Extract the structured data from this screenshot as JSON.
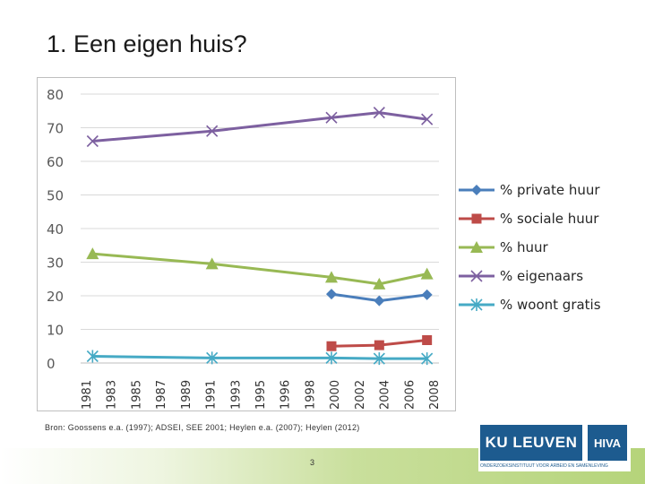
{
  "slide": {
    "title": "1. Een eigen huis?",
    "source": "Bron: Goossens e.a. (1997); ADSEI, SEE 2001; Heylen e.a. (2007); Heylen (2012)",
    "page_number": "3"
  },
  "logo": {
    "ku_text": "KU LEUVEN",
    "hva_text": "HIVA",
    "tagline": "ONDERZOEKSINSTITUUT VOOR ARBEID EN SAMENLEVING"
  },
  "chart_data": {
    "type": "line",
    "title": "",
    "xlabel": "",
    "ylabel": "",
    "ylim": [
      0,
      80
    ],
    "yticks": [
      0,
      10,
      20,
      30,
      40,
      50,
      60,
      70,
      80
    ],
    "categories": [
      "1981",
      "1983",
      "1985",
      "1987",
      "1989",
      "1991",
      "1993",
      "1995",
      "1996",
      "1998",
      "2000",
      "2002",
      "2004",
      "2006",
      "2008"
    ],
    "grid": "horizontal",
    "legend_position": "right",
    "series": [
      {
        "name": "% private huur",
        "color": "#4a7ebb",
        "marker": "diamond",
        "points": [
          [
            2001,
            20.5
          ],
          [
            2005,
            18.5
          ],
          [
            2009,
            20.3
          ]
        ]
      },
      {
        "name": "% sociale huur",
        "color": "#be4b48",
        "marker": "square",
        "points": [
          [
            2001,
            5.0
          ],
          [
            2005,
            5.3
          ],
          [
            2009,
            6.8
          ]
        ]
      },
      {
        "name": "% huur",
        "color": "#98b954",
        "marker": "triangle",
        "points": [
          [
            1981,
            32.5
          ],
          [
            1991,
            29.5
          ],
          [
            2001,
            25.5
          ],
          [
            2005,
            23.5
          ],
          [
            2009,
            26.5
          ]
        ]
      },
      {
        "name": "% eigenaars",
        "color": "#7d60a0",
        "marker": "x",
        "points": [
          [
            1981,
            66.0
          ],
          [
            1991,
            69.0
          ],
          [
            2001,
            73.0
          ],
          [
            2005,
            74.5
          ],
          [
            2009,
            72.5
          ]
        ]
      },
      {
        "name": "% woont gratis",
        "color": "#46aac5",
        "marker": "star",
        "points": [
          [
            1981,
            2.0
          ],
          [
            1991,
            1.5
          ],
          [
            2001,
            1.5
          ],
          [
            2005,
            1.3
          ],
          [
            2009,
            1.3
          ]
        ]
      }
    ]
  }
}
